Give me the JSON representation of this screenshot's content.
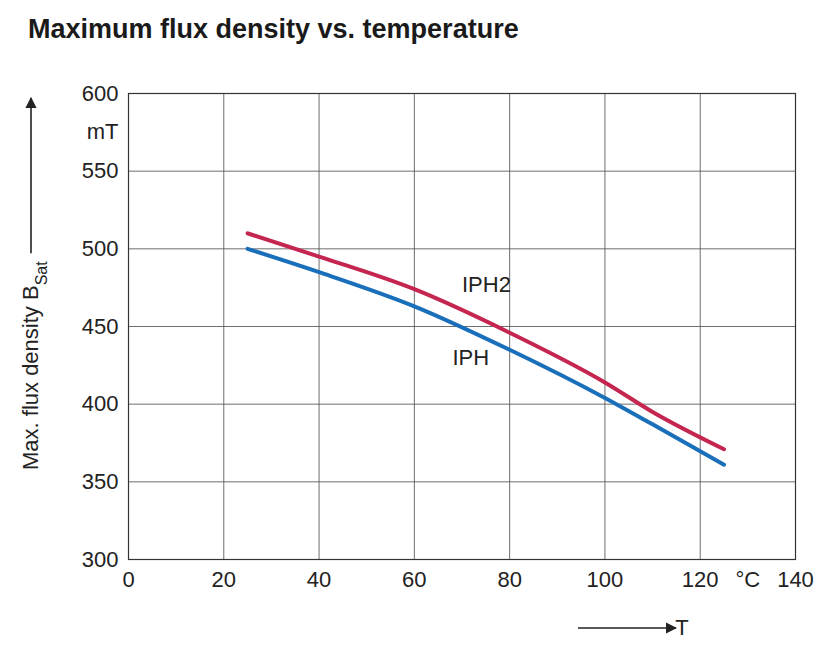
{
  "chart_data": {
    "type": "line",
    "title": "Maximum flux density vs. temperature",
    "ylabel": "Max. flux density B",
    "ylabel_subscript": "Sat",
    "xlabel": "T",
    "x": [
      25,
      40,
      60,
      80,
      100,
      110,
      125
    ],
    "series": [
      {
        "name": "IPH2",
        "color": "#c4264f",
        "values": [
          510,
          495,
          474,
          446,
          414,
          395,
          371
        ]
      },
      {
        "name": "IPH",
        "color": "#1a6fba",
        "values": [
          500,
          485,
          463,
          435,
          404,
          387,
          361
        ]
      }
    ],
    "xlim": [
      0,
      140
    ],
    "xticks": [
      0,
      20,
      40,
      60,
      80,
      100,
      120,
      {
        "value": 130,
        "label": "°C"
      },
      140
    ],
    "ylim": [
      300,
      600
    ],
    "yticks": [
      300,
      350,
      400,
      450,
      500,
      550,
      {
        "value": 575,
        "label": "mT"
      },
      600
    ],
    "annotations": [
      {
        "text": "IPH2",
        "x": 70,
        "y": 477
      },
      {
        "text": "IPH",
        "x": 68,
        "y": 430
      }
    ],
    "grid": true
  }
}
